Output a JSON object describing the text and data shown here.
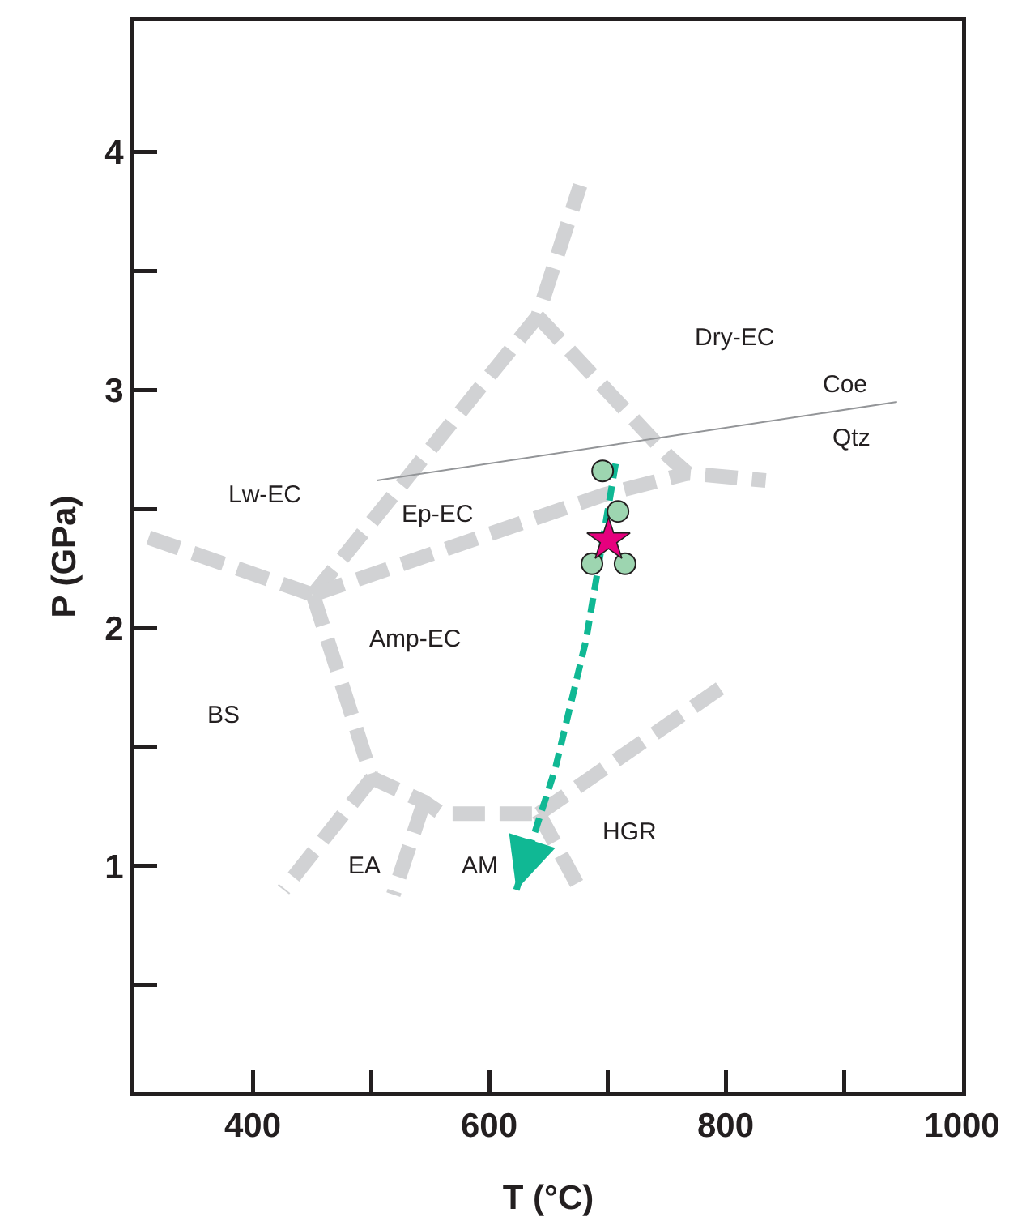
{
  "chart_data": {
    "type": "line",
    "xlabel": "T (°C)",
    "ylabel": "P (GPa)",
    "xlim": [
      300,
      1000
    ],
    "ylim": [
      0.05,
      4.55
    ],
    "xticks": [
      400,
      {
        "value": 500,
        "label": null
      },
      600,
      {
        "value": 700,
        "label": null
      },
      800,
      {
        "value": 900,
        "label": null
      },
      1000
    ],
    "yticks": [
      {
        "value": 0.5,
        "label": null
      },
      1,
      {
        "value": 1.5,
        "label": null
      },
      2,
      {
        "value": 2.5,
        "label": null
      },
      3,
      {
        "value": 3.5,
        "label": null
      },
      4
    ],
    "grid": false,
    "series": [
      {
        "type": "line",
        "color": "#d1d2d4",
        "line_style": "dashed",
        "marker": "none",
        "x": [
          312,
          451
        ],
        "values": [
          2.38,
          2.14
        ]
      },
      {
        "type": "line",
        "color": "#d1d2d4",
        "line_style": "dashed",
        "marker": "none",
        "x": [
          451,
          641,
          677
        ],
        "values": [
          2.14,
          3.31,
          3.86
        ]
      },
      {
        "type": "line",
        "color": "#d1d2d4",
        "line_style": "dashed",
        "marker": "none",
        "x": [
          641,
          752,
          768,
          834
        ],
        "values": [
          3.31,
          2.72,
          2.65,
          2.62
        ]
      },
      {
        "type": "line",
        "color": "#d1d2d4",
        "line_style": "dashed",
        "marker": "none",
        "x": [
          451,
          697,
          768
        ],
        "values": [
          2.14,
          2.56,
          2.65
        ]
      },
      {
        "type": "line",
        "color": "#d1d2d4",
        "line_style": "dashed",
        "marker": "none",
        "x": [
          451,
          501,
          545,
          560,
          642
        ],
        "values": [
          2.14,
          1.37,
          1.27,
          1.22,
          1.22
        ]
      },
      {
        "type": "line",
        "color": "#d1d2d4",
        "line_style": "dashed",
        "marker": "none",
        "x": [
          501,
          426
        ],
        "values": [
          1.37,
          0.9
        ]
      },
      {
        "type": "line",
        "color": "#d1d2d4",
        "line_style": "dashed",
        "marker": "none",
        "x": [
          545,
          519
        ],
        "values": [
          1.27,
          0.88
        ]
      },
      {
        "type": "line",
        "color": "#d1d2d4",
        "line_style": "dashed",
        "marker": "none",
        "x": [
          642,
          677
        ],
        "values": [
          1.22,
          0.9
        ]
      },
      {
        "type": "line",
        "color": "#d1d2d4",
        "line_style": "dashed",
        "marker": "none",
        "x": [
          642,
          805
        ],
        "values": [
          1.22,
          1.78
        ]
      },
      {
        "type": "line",
        "color": "#939598",
        "line_style": "solid",
        "marker": "none",
        "x": [
          505,
          945
        ],
        "values": [
          2.62,
          2.95
        ]
      },
      {
        "color": "#10b894",
        "line_style": "dashed",
        "marker": "none",
        "x": [
          707,
          682,
          656,
          623
        ],
        "values": [
          2.69,
          1.95,
          1.41,
          0.9
        ]
      },
      {
        "type": "scatter",
        "color": "#9dd5b0",
        "marker": "circle",
        "x": [
          696,
          709,
          687,
          715
        ],
        "values": [
          2.66,
          2.49,
          2.27,
          2.27
        ]
      },
      {
        "type": "scatter",
        "color": "#e6007e",
        "marker": "star",
        "x": [
          701
        ],
        "values": [
          2.37
        ]
      }
    ],
    "annotations": [
      "Dry-EC",
      "Coe",
      "Qtz",
      "Lw-EC",
      "Ep-EC",
      "Amp-EC",
      "BS",
      "EA",
      "AM",
      "HGR"
    ]
  }
}
